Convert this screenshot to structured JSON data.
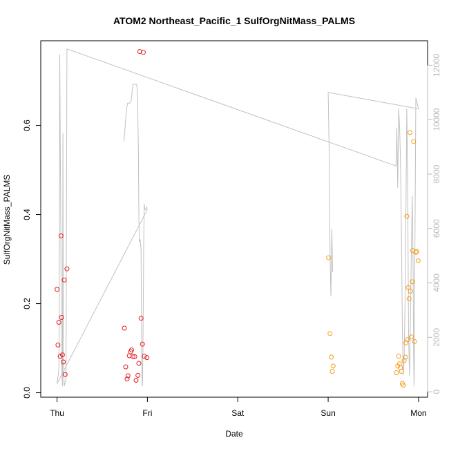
{
  "chart_data": {
    "type": "scatter",
    "title": "ATOM2 Northeast_Pacific_1 SulfOrgNitMass_PALMS",
    "xlabel": "Date",
    "ylabel": "SulfOrgNitMass_PALMS",
    "x_axis": {
      "unit": "days",
      "range": [
        -0.18,
        4.1
      ],
      "ticks": [
        {
          "value": 0,
          "label": "Thu"
        },
        {
          "value": 1,
          "label": "Fri"
        },
        {
          "value": 2,
          "label": "Sat"
        },
        {
          "value": 3,
          "label": "Sun"
        },
        {
          "value": 4,
          "label": "Mon"
        }
      ]
    },
    "y_axis": {
      "range": [
        -0.01,
        0.79
      ],
      "ticks": [
        0.0,
        0.2,
        0.4,
        0.6
      ],
      "tick_labels": [
        "0.0",
        "0.2",
        "0.4",
        "0.6"
      ]
    },
    "y2_axis": {
      "range": [
        -200,
        12900
      ],
      "ticks": [
        0,
        2000,
        4000,
        6000,
        8000,
        10000,
        12000
      ],
      "tick_labels": [
        "0",
        "2000",
        "4000",
        "6000",
        "8000",
        "10000",
        "12000"
      ],
      "color": "#b8b8b8"
    },
    "grid": false,
    "series": [
      {
        "color": "#e41a1c",
        "marker": "circle-open",
        "points": [
          [
            0.0,
            0.232
          ],
          [
            0.01,
            0.107
          ],
          [
            0.02,
            0.158
          ],
          [
            0.035,
            0.082
          ],
          [
            0.045,
            0.352
          ],
          [
            0.05,
            0.169
          ],
          [
            0.06,
            0.085
          ],
          [
            0.07,
            0.069
          ],
          [
            0.08,
            0.253
          ],
          [
            0.09,
            0.041
          ],
          [
            0.11,
            0.278
          ],
          [
            0.745,
            0.145
          ],
          [
            0.76,
            0.058
          ],
          [
            0.775,
            0.031
          ],
          [
            0.785,
            0.038
          ],
          [
            0.8,
            0.083
          ],
          [
            0.815,
            0.092
          ],
          [
            0.825,
            0.096
          ],
          [
            0.84,
            0.081
          ],
          [
            0.86,
            0.081
          ],
          [
            0.875,
            0.028
          ],
          [
            0.895,
            0.039
          ],
          [
            0.905,
            0.066
          ],
          [
            0.915,
            0.766
          ],
          [
            0.93,
            0.167
          ],
          [
            0.945,
            0.109
          ],
          [
            0.955,
            0.764
          ],
          [
            0.965,
            0.082
          ],
          [
            0.995,
            0.079
          ]
        ]
      },
      {
        "color": "#f59d1a",
        "marker": "circle-open",
        "points": [
          [
            3.005,
            0.303
          ],
          [
            3.02,
            0.133
          ],
          [
            3.035,
            0.08
          ],
          [
            3.045,
            0.048
          ],
          [
            3.055,
            0.06
          ],
          [
            3.755,
            0.045
          ],
          [
            3.77,
            0.06
          ],
          [
            3.78,
            0.082
          ],
          [
            3.79,
            0.065
          ],
          [
            3.8,
            0.056
          ],
          [
            3.81,
            0.048
          ],
          [
            3.82,
            0.021
          ],
          [
            3.83,
            0.017
          ],
          [
            3.84,
            0.072
          ],
          [
            3.855,
            0.08
          ],
          [
            3.86,
            0.112
          ],
          [
            3.87,
            0.396
          ],
          [
            3.875,
            0.119
          ],
          [
            3.885,
            0.236
          ],
          [
            3.895,
            0.211
          ],
          [
            3.905,
            0.584
          ],
          [
            3.91,
            0.228
          ],
          [
            3.92,
            0.125
          ],
          [
            3.93,
            0.249
          ],
          [
            3.935,
            0.319
          ],
          [
            3.945,
            0.564
          ],
          [
            3.955,
            0.115
          ],
          [
            3.97,
            0.315
          ],
          [
            3.98,
            0.317
          ],
          [
            3.995,
            0.296
          ]
        ]
      },
      {
        "color": "#c0c0c0",
        "type": "line",
        "axis": "y2",
        "points": [
          [
            0.0,
            300
          ],
          [
            0.02,
            800
          ],
          [
            0.025,
            3500
          ],
          [
            0.03,
            12400
          ],
          [
            0.04,
            7000
          ],
          [
            0.05,
            1000
          ],
          [
            0.06,
            200
          ],
          [
            0.065,
            9500
          ],
          [
            0.07,
            1000
          ],
          [
            0.08,
            200
          ],
          [
            0.1,
            500
          ],
          [
            0.11,
            12600
          ],
          [
            3.75,
            8300
          ],
          [
            3.76,
            9700
          ],
          [
            3.77,
            7500
          ],
          [
            3.78,
            10400
          ],
          [
            3.79,
            9800
          ],
          [
            3.8,
            8600
          ],
          [
            3.81,
            6000
          ],
          [
            3.82,
            2500
          ],
          [
            3.83,
            600
          ],
          [
            3.84,
            1200
          ],
          [
            3.85,
            3200
          ],
          [
            3.86,
            6500
          ],
          [
            3.87,
            10400
          ],
          [
            3.88,
            7500
          ],
          [
            3.89,
            2000
          ],
          [
            3.9,
            600
          ],
          [
            3.91,
            2500
          ],
          [
            3.92,
            5000
          ],
          [
            3.93,
            7200
          ],
          [
            3.94,
            4500
          ],
          [
            3.945,
            1500
          ],
          [
            3.95,
            200
          ],
          [
            3.955,
            1500
          ],
          [
            3.96,
            5500
          ],
          [
            3.97,
            10800
          ],
          [
            4.0,
            10400
          ],
          [
            3.0,
            11000
          ],
          [
            3.01,
            9000
          ],
          [
            3.02,
            5200
          ],
          [
            3.03,
            3500
          ],
          [
            3.04,
            6000
          ],
          [
            3.05,
            4400
          ]
        ]
      },
      {
        "color": "#c0c0c0",
        "type": "line",
        "axis": "y2",
        "points": [
          [
            0.74,
            9200
          ],
          [
            0.76,
            10000
          ],
          [
            0.77,
            10400
          ],
          [
            0.78,
            10600
          ],
          [
            0.8,
            10600
          ],
          [
            0.82,
            10700
          ],
          [
            0.84,
            11300
          ],
          [
            0.88,
            11300
          ],
          [
            0.89,
            11000
          ],
          [
            0.9,
            9000
          ],
          [
            0.905,
            6600
          ],
          [
            0.91,
            5500
          ],
          [
            0.92,
            5600
          ],
          [
            0.93,
            5200
          ],
          [
            0.935,
            2000
          ],
          [
            0.94,
            500
          ],
          [
            0.945,
            200
          ],
          [
            0.95,
            1500
          ],
          [
            0.955,
            3500
          ],
          [
            0.96,
            5800
          ],
          [
            0.965,
            6900
          ],
          [
            0.97,
            6700
          ],
          [
            0.98,
            6700
          ],
          [
            0.99,
            6800
          ],
          [
            0.995,
            6700
          ]
        ]
      },
      {
        "color": "#c0c0c0",
        "type": "line",
        "axis": "y2",
        "points": [
          [
            0.0,
            300
          ],
          [
            1.0,
            6700
          ]
        ]
      }
    ]
  }
}
